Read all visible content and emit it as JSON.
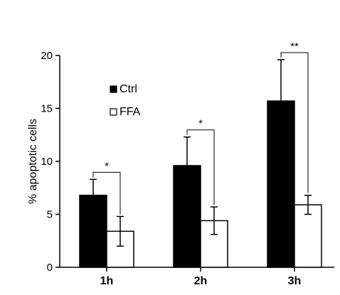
{
  "chart_data": {
    "type": "bar",
    "title": "",
    "xlabel": "",
    "ylabel": "% apoptotic cells",
    "ylim": [
      0,
      20
    ],
    "yticks": [
      0,
      5,
      10,
      15,
      20
    ],
    "categories": [
      "1h",
      "2h",
      "3h"
    ],
    "series": [
      {
        "name": "Ctrl",
        "color": "#000000",
        "values": [
          6.8,
          9.6,
          15.7
        ],
        "errors": [
          1.5,
          2.7,
          3.9
        ]
      },
      {
        "name": "FFA",
        "color": "#ffffff",
        "values": [
          3.4,
          4.4,
          5.9
        ],
        "errors": [
          1.4,
          1.3,
          0.9
        ]
      }
    ],
    "significance": [
      "*",
      "*",
      "**"
    ],
    "legend": {
      "position": "top-left"
    },
    "grid": false
  }
}
